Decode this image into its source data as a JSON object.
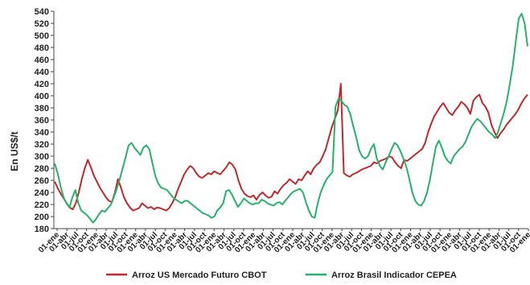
{
  "chart_data": {
    "type": "line",
    "title": "",
    "ylabel": "En US$/t",
    "xlabel": "",
    "ylim": [
      180,
      540
    ],
    "yticks": [
      180,
      200,
      220,
      240,
      260,
      280,
      300,
      320,
      340,
      360,
      380,
      400,
      420,
      440,
      460,
      480,
      500,
      520,
      540
    ],
    "x_tick_labels": [
      "01-ene",
      "01-abr",
      "01-jul",
      "01-oct",
      "01-ene",
      "01-abr",
      "01-jul",
      "01-oct",
      "01-ene",
      "01-abr",
      "01-jul",
      "01-oct",
      "01-ene",
      "01-abr",
      "01-jul",
      "01-oct",
      "01-ene",
      "01-abr",
      "01-jul",
      "01-oct",
      "01-ene",
      "01-abr",
      "01-jul",
      "01-oct",
      "01-ene",
      "01-abr",
      "01-jul",
      "01-oct",
      "01-ene",
      "01-abr",
      "01-jul",
      "01-oct",
      "01-ene",
      "01-abr",
      "01-jul",
      "01-oct",
      "01-ene",
      "01-abr",
      "01-jul",
      "01-oct",
      "01-ene",
      "01-abr",
      "01-jul",
      "01-oct",
      "01-ene",
      "01-abr",
      "01-jul",
      "01-oct",
      "01-ene"
    ],
    "grid": false,
    "legend_position": "bottom",
    "series": [
      {
        "name": "Arroz US Mercado Futuro CBOT",
        "color": "#c0282d",
        "values": [
          258,
          247,
          238,
          230,
          222,
          215,
          212,
          222,
          240,
          262,
          280,
          294,
          282,
          268,
          258,
          248,
          240,
          232,
          226,
          224,
          240,
          262,
          248,
          232,
          222,
          215,
          210,
          212,
          214,
          222,
          218,
          214,
          216,
          212,
          215,
          214,
          212,
          210,
          214,
          222,
          232,
          246,
          258,
          270,
          278,
          284,
          280,
          272,
          266,
          264,
          268,
          272,
          270,
          275,
          272,
          270,
          276,
          282,
          290,
          286,
          278,
          260,
          246,
          238,
          234,
          232,
          235,
          228,
          236,
          240,
          235,
          231,
          233,
          242,
          238,
          246,
          252,
          256,
          262,
          258,
          254,
          262,
          260,
          268,
          275,
          270,
          280,
          286,
          290,
          300,
          312,
          330,
          348,
          362,
          376,
          420,
          272,
          268,
          266,
          270,
          272,
          275,
          278,
          280,
          282,
          284,
          290,
          288,
          292,
          294,
          296,
          300,
          298,
          290,
          284,
          280,
          294,
          292,
          296,
          300,
          304,
          308,
          312,
          322,
          340,
          354,
          366,
          374,
          382,
          388,
          380,
          372,
          368,
          376,
          382,
          390,
          386,
          380,
          370,
          392,
          398,
          402,
          388,
          382,
          372,
          352,
          340,
          330,
          338,
          344,
          352,
          358,
          364,
          370,
          378,
          388,
          396,
          402
        ]
      },
      {
        "name": "Arroz Brasil Indicador CEPEA",
        "color": "#25b26a",
        "values": [
          288,
          272,
          250,
          232,
          222,
          215,
          232,
          244,
          222,
          210,
          206,
          202,
          196,
          190,
          196,
          204,
          210,
          208,
          214,
          220,
          232,
          246,
          262,
          280,
          298,
          318,
          322,
          314,
          308,
          302,
          314,
          318,
          312,
          290,
          268,
          255,
          248,
          246,
          244,
          238,
          232,
          228,
          225,
          222,
          226,
          226,
          222,
          218,
          214,
          210,
          206,
          204,
          202,
          198,
          200,
          210,
          215,
          222,
          242,
          244,
          236,
          226,
          216,
          222,
          230,
          226,
          222,
          220,
          222,
          222,
          228,
          226,
          222,
          220,
          218,
          222,
          224,
          220,
          226,
          232,
          238,
          242,
          244,
          246,
          240,
          224,
          210,
          200,
          198,
          222,
          240,
          252,
          262,
          268,
          274,
          382,
          395,
          392,
          385,
          382,
          370,
          350,
          332,
          310,
          300,
          296,
          300,
          312,
          320,
          296,
          284,
          278,
          290,
          300,
          312,
          322,
          318,
          308,
          296,
          282,
          262,
          240,
          226,
          220,
          218,
          226,
          240,
          262,
          290,
          316,
          326,
          314,
          300,
          292,
          288,
          300,
          306,
          312,
          316,
          324,
          336,
          348,
          356,
          362,
          358,
          352,
          346,
          340,
          336,
          330,
          340,
          356,
          372,
          392,
          420,
          450,
          490,
          528,
          536,
          520,
          482
        ]
      }
    ]
  }
}
